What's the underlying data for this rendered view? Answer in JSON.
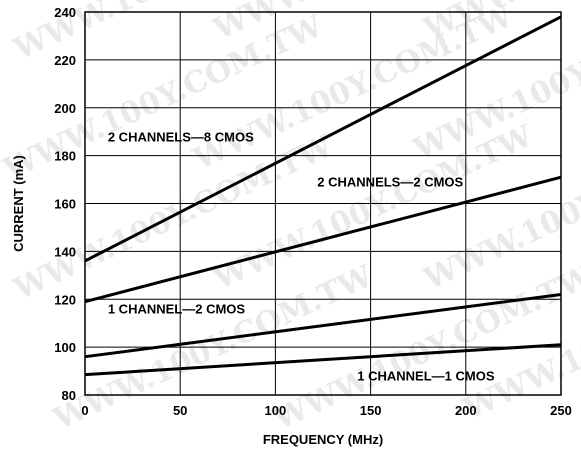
{
  "chart_data": {
    "type": "line",
    "xlabel": "FREQUENCY (MHz)",
    "ylabel": "CURRENT (mA)",
    "xlim": [
      0,
      250
    ],
    "ylim": [
      80,
      240
    ],
    "xticks": [
      "0",
      "50",
      "100",
      "150",
      "200",
      "250"
    ],
    "yticks": [
      "80",
      "100",
      "120",
      "140",
      "160",
      "180",
      "200",
      "220",
      "240"
    ],
    "grid": true,
    "watermark": "WWW.100Y.COM.TW",
    "series": [
      {
        "name": "2 CHANNELS—8 CMOS",
        "x": [
          0,
          250
        ],
        "y": [
          136,
          238
        ]
      },
      {
        "name": "2 CHANNELS—2 CMOS",
        "x": [
          0,
          250
        ],
        "y": [
          119,
          171
        ]
      },
      {
        "name": "1 CHANNEL—2 CMOS",
        "x": [
          0,
          250
        ],
        "y": [
          96,
          122
        ]
      },
      {
        "name": "1 CHANNEL—1 CMOS",
        "x": [
          0,
          250
        ],
        "y": [
          88.5,
          101
        ]
      }
    ],
    "line_color": "#000000"
  }
}
